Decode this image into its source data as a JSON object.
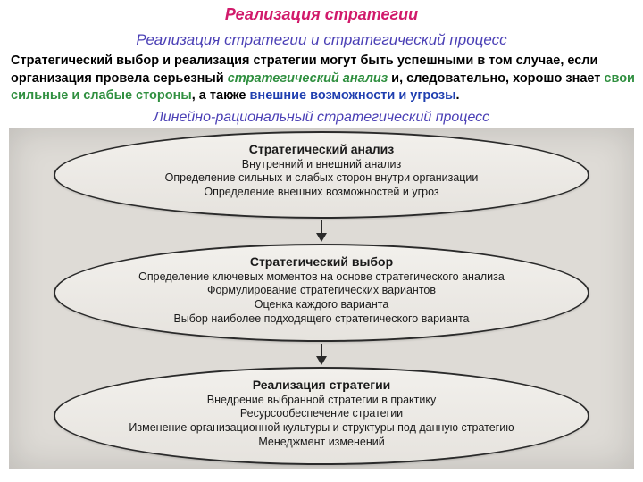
{
  "colors": {
    "title": "#d11a6b",
    "subtitle": "#4a3fb5",
    "section": "#4a3fb5",
    "body": "#000000",
    "accent_green": "#2f8f3f",
    "accent_blue": "#1f3fb0",
    "ellipse_border": "#2a2a2a",
    "ellipse_bg": "#ece9e3",
    "scan_bg": "#dedbd6"
  },
  "typography": {
    "title_fontsize": 18,
    "subtitle_fontsize": 17,
    "para_fontsize": 14.5,
    "section_fontsize": 16,
    "ellipse_title_fontsize": 14,
    "ellipse_line_fontsize": 12.5,
    "font_family": "Arial"
  },
  "title": "Реализация стратегии",
  "subtitle": "Реализация стратегии и стратегический процесс",
  "paragraph": {
    "runs": [
      {
        "text": "Стратегический выбор и реализация стратегии могут быть успешными в том случае, если организация провела серьезный ",
        "color": "#000000",
        "italic": false
      },
      {
        "text": "стратегический анализ",
        "color": "#2f8f3f",
        "italic": true
      },
      {
        "text": " и, следовательно, хорошо знает ",
        "color": "#000000",
        "italic": false
      },
      {
        "text": "свои сильные и слабые стороны",
        "color": "#2f8f3f",
        "italic": false
      },
      {
        "text": ", а также ",
        "color": "#000000",
        "italic": false
      },
      {
        "text": "внешние возможности и угрозы",
        "color": "#1f3fb0",
        "italic": false
      },
      {
        "text": ".",
        "color": "#000000",
        "italic": false
      }
    ]
  },
  "section_title": "Линейно-рациональный стратегический процесс",
  "diagram": {
    "type": "flowchart",
    "layout": "vertical",
    "ellipse_width": 600,
    "ellipse_heights": [
      98,
      110,
      110
    ],
    "arrow_color": "#2a2a2a",
    "nodes": [
      {
        "id": "analysis",
        "title": "Стратегический анализ",
        "lines": [
          "Внутренний и внешний анализ",
          "Определение сильных и слабых сторон внутри организации",
          "Определение внешних возможностей и угроз"
        ]
      },
      {
        "id": "choice",
        "title": "Стратегический выбор",
        "lines": [
          "Определение ключевых моментов на основе стратегического анализа",
          "Формулирование стратегических вариантов",
          "Оценка каждого варианта",
          "Выбор наиболее подходящего стратегического варианта"
        ]
      },
      {
        "id": "implementation",
        "title": "Реализация стратегии",
        "lines": [
          "Внедрение выбранной стратегии в практику",
          "Ресурсообеспечение стратегии",
          "Изменение организационной культуры и структуры под данную стратегию",
          "Менеджмент изменений"
        ]
      }
    ],
    "edges": [
      {
        "from": "analysis",
        "to": "choice"
      },
      {
        "from": "choice",
        "to": "implementation"
      }
    ]
  }
}
